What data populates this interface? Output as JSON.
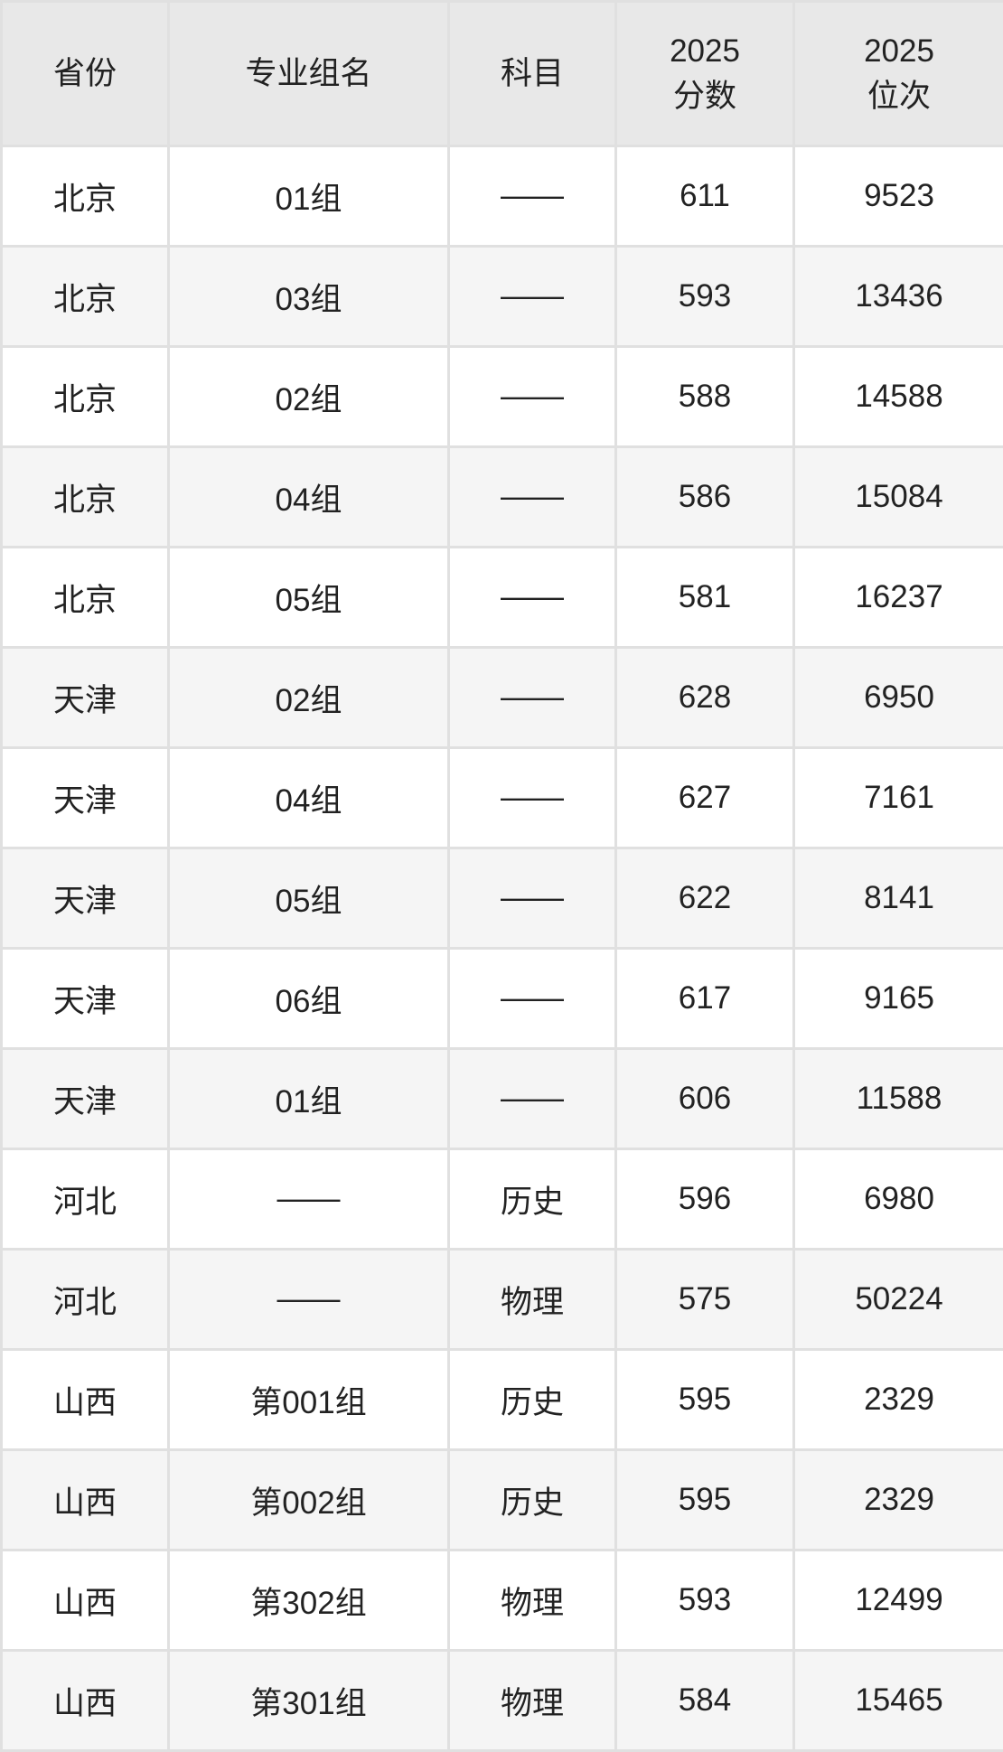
{
  "table": {
    "columns": [
      {
        "key": "province",
        "label": "省份",
        "label2": ""
      },
      {
        "key": "group",
        "label": "专业组名",
        "label2": ""
      },
      {
        "key": "subject",
        "label": "科目",
        "label2": ""
      },
      {
        "key": "score",
        "label": "2025",
        "label2": "分数"
      },
      {
        "key": "rank",
        "label": "2025",
        "label2": "位次"
      }
    ],
    "rows": [
      [
        "北京",
        "01组",
        "——",
        "611",
        "9523"
      ],
      [
        "北京",
        "03组",
        "——",
        "593",
        "13436"
      ],
      [
        "北京",
        "02组",
        "——",
        "588",
        "14588"
      ],
      [
        "北京",
        "04组",
        "——",
        "586",
        "15084"
      ],
      [
        "北京",
        "05组",
        "——",
        "581",
        "16237"
      ],
      [
        "天津",
        "02组",
        "——",
        "628",
        "6950"
      ],
      [
        "天津",
        "04组",
        "——",
        "627",
        "7161"
      ],
      [
        "天津",
        "05组",
        "——",
        "622",
        "8141"
      ],
      [
        "天津",
        "06组",
        "——",
        "617",
        "9165"
      ],
      [
        "天津",
        "01组",
        "——",
        "606",
        "11588"
      ],
      [
        "河北",
        "——",
        "历史",
        "596",
        "6980"
      ],
      [
        "河北",
        "——",
        "物理",
        "575",
        "50224"
      ],
      [
        "山西",
        "第001组",
        "历史",
        "595",
        "2329"
      ],
      [
        "山西",
        "第002组",
        "历史",
        "595",
        "2329"
      ],
      [
        "山西",
        "第302组",
        "物理",
        "593",
        "12499"
      ],
      [
        "山西",
        "第301组",
        "物理",
        "584",
        "15465"
      ]
    ]
  },
  "chart_data": {
    "type": "table",
    "title": "",
    "columns": [
      "省份",
      "专业组名",
      "科目",
      "2025分数",
      "2025位次"
    ],
    "rows": [
      [
        "北京",
        "01组",
        "——",
        611,
        9523
      ],
      [
        "北京",
        "03组",
        "——",
        593,
        13436
      ],
      [
        "北京",
        "02组",
        "——",
        588,
        14588
      ],
      [
        "北京",
        "04组",
        "——",
        586,
        15084
      ],
      [
        "北京",
        "05组",
        "——",
        581,
        16237
      ],
      [
        "天津",
        "02组",
        "——",
        628,
        6950
      ],
      [
        "天津",
        "04组",
        "——",
        627,
        7161
      ],
      [
        "天津",
        "05组",
        "——",
        622,
        8141
      ],
      [
        "天津",
        "06组",
        "——",
        617,
        9165
      ],
      [
        "天津",
        "01组",
        "——",
        606,
        11588
      ],
      [
        "河北",
        "——",
        "历史",
        596,
        6980
      ],
      [
        "河北",
        "——",
        "物理",
        575,
        50224
      ],
      [
        "山西",
        "第001组",
        "历史",
        595,
        2329
      ],
      [
        "山西",
        "第002组",
        "历史",
        595,
        2329
      ],
      [
        "山西",
        "第302组",
        "物理",
        593,
        12499
      ],
      [
        "山西",
        "第301组",
        "物理",
        584,
        15465
      ]
    ]
  },
  "colors": {
    "header_bg": "#e8e8e8",
    "row_alt_bg": "#f5f5f5",
    "row_bg": "#ffffff",
    "border": "#e0e0e0",
    "text": "#222222"
  }
}
